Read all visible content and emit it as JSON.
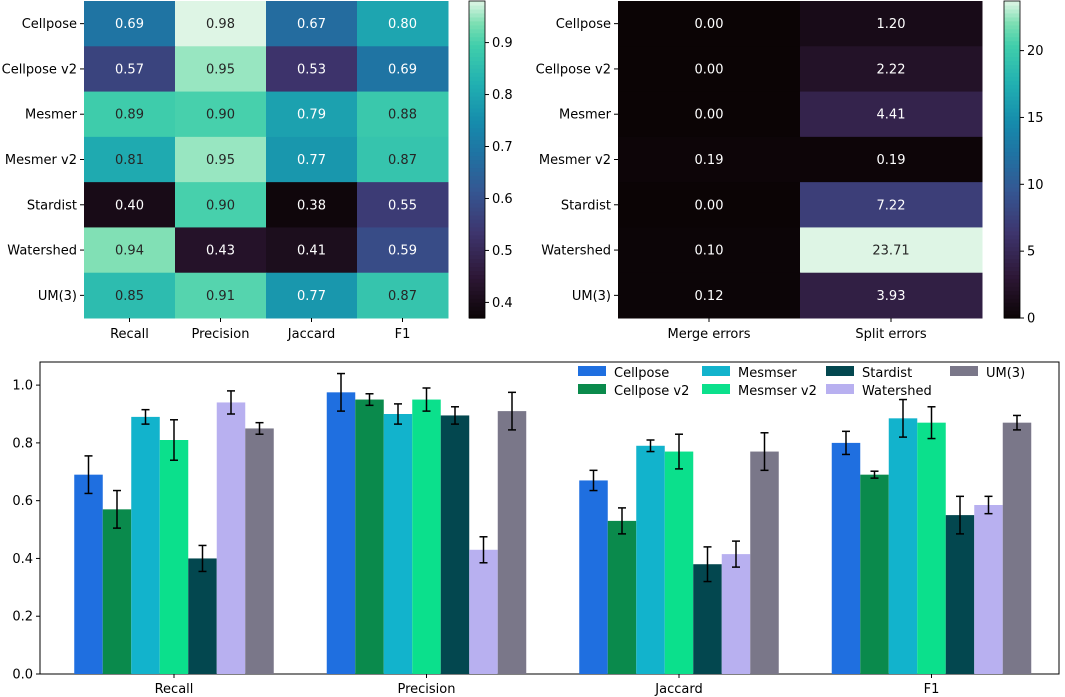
{
  "chart_data": [
    {
      "type": "heatmap",
      "rows": [
        "Cellpose",
        "Cellpose v2",
        "Mesmer",
        "Mesmer v2",
        "Stardist",
        "Watershed",
        "UM(3)"
      ],
      "columns": [
        "Recall",
        "Precision",
        "Jaccard",
        "F1"
      ],
      "values": [
        [
          0.69,
          0.98,
          0.67,
          0.8
        ],
        [
          0.57,
          0.95,
          0.53,
          0.69
        ],
        [
          0.89,
          0.9,
          0.79,
          0.88
        ],
        [
          0.81,
          0.95,
          0.77,
          0.87
        ],
        [
          0.4,
          0.9,
          0.38,
          0.55
        ],
        [
          0.94,
          0.43,
          0.41,
          0.59
        ],
        [
          0.85,
          0.91,
          0.77,
          0.87
        ]
      ],
      "labels": [
        [
          "0.69",
          "0.98",
          "0.67",
          "0.80"
        ],
        [
          "0.57",
          "0.95",
          "0.53",
          "0.69"
        ],
        [
          "0.89",
          "0.90",
          "0.79",
          "0.88"
        ],
        [
          "0.81",
          "0.95",
          "0.77",
          "0.87"
        ],
        [
          "0.40",
          "0.90",
          "0.38",
          "0.55"
        ],
        [
          "0.94",
          "0.43",
          "0.41",
          "0.59"
        ],
        [
          "0.85",
          "0.91",
          "0.77",
          "0.87"
        ]
      ],
      "vmin": 0.37,
      "vmax": 0.98,
      "colorbar_ticks": [
        "0.4",
        "0.5",
        "0.6",
        "0.7",
        "0.8",
        "0.9"
      ],
      "colorbar_tick_values": [
        0.4,
        0.5,
        0.6,
        0.7,
        0.8,
        0.9
      ]
    },
    {
      "type": "heatmap",
      "rows": [
        "Cellpose",
        "Cellpose v2",
        "Mesmer",
        "Mesmer v2",
        "Stardist",
        "Watershed",
        "UM(3)"
      ],
      "columns": [
        "Merge errors",
        "Split errors"
      ],
      "values": [
        [
          0.0,
          1.2
        ],
        [
          0.0,
          2.22
        ],
        [
          0.0,
          4.41
        ],
        [
          0.19,
          0.19
        ],
        [
          0.0,
          7.22
        ],
        [
          0.1,
          23.71
        ],
        [
          0.12,
          3.93
        ]
      ],
      "labels": [
        [
          "0.00",
          "1.20"
        ],
        [
          "0.00",
          "2.22"
        ],
        [
          "0.00",
          "4.41"
        ],
        [
          "0.19",
          "0.19"
        ],
        [
          "0.00",
          "7.22"
        ],
        [
          "0.10",
          "23.71"
        ],
        [
          "0.12",
          "3.93"
        ]
      ],
      "vmin": 0,
      "vmax": 23.71,
      "colorbar_label": "%",
      "colorbar_ticks": [
        "0",
        "5",
        "10",
        "15",
        "20"
      ],
      "colorbar_tick_values": [
        0,
        5,
        10,
        15,
        20
      ]
    },
    {
      "type": "bar",
      "categories": [
        "Recall",
        "Precision",
        "Jaccard",
        "F1"
      ],
      "series": [
        {
          "name": "Cellpose",
          "color": "#1f6fe0",
          "values": [
            0.69,
            0.975,
            0.67,
            0.8
          ],
          "errors": [
            0.065,
            0.065,
            0.035,
            0.04
          ]
        },
        {
          "name": "Cellpose v2",
          "color": "#0a8a4c",
          "values": [
            0.57,
            0.95,
            0.53,
            0.69
          ],
          "errors": [
            0.065,
            0.02,
            0.045,
            0.012
          ]
        },
        {
          "name": "Mesmser",
          "color": "#12b3cc",
          "values": [
            0.89,
            0.9,
            0.79,
            0.885
          ],
          "errors": [
            0.025,
            0.035,
            0.02,
            0.065
          ]
        },
        {
          "name": "Mesmser v2",
          "color": "#0be08c",
          "values": [
            0.81,
            0.95,
            0.77,
            0.87
          ],
          "errors": [
            0.07,
            0.04,
            0.06,
            0.055
          ]
        },
        {
          "name": "Stardist",
          "color": "#03474f",
          "values": [
            0.4,
            0.895,
            0.38,
            0.55
          ],
          "errors": [
            0.045,
            0.03,
            0.06,
            0.065
          ]
        },
        {
          "name": "Watershed",
          "color": "#b8b0f0",
          "values": [
            0.94,
            0.43,
            0.415,
            0.585
          ],
          "errors": [
            0.04,
            0.045,
            0.045,
            0.03
          ]
        },
        {
          "name": "UM(3)",
          "color": "#7a7789",
          "values": [
            0.85,
            0.91,
            0.77,
            0.87
          ],
          "errors": [
            0.02,
            0.065,
            0.065,
            0.025
          ]
        }
      ],
      "ylim": [
        0,
        1.08
      ],
      "yticks": [
        "0.0",
        "0.2",
        "0.4",
        "0.6",
        "0.8",
        "1.0"
      ],
      "ytick_values": [
        0,
        0.2,
        0.4,
        0.6,
        0.8,
        1.0
      ],
      "legend_position": "top-right"
    }
  ]
}
